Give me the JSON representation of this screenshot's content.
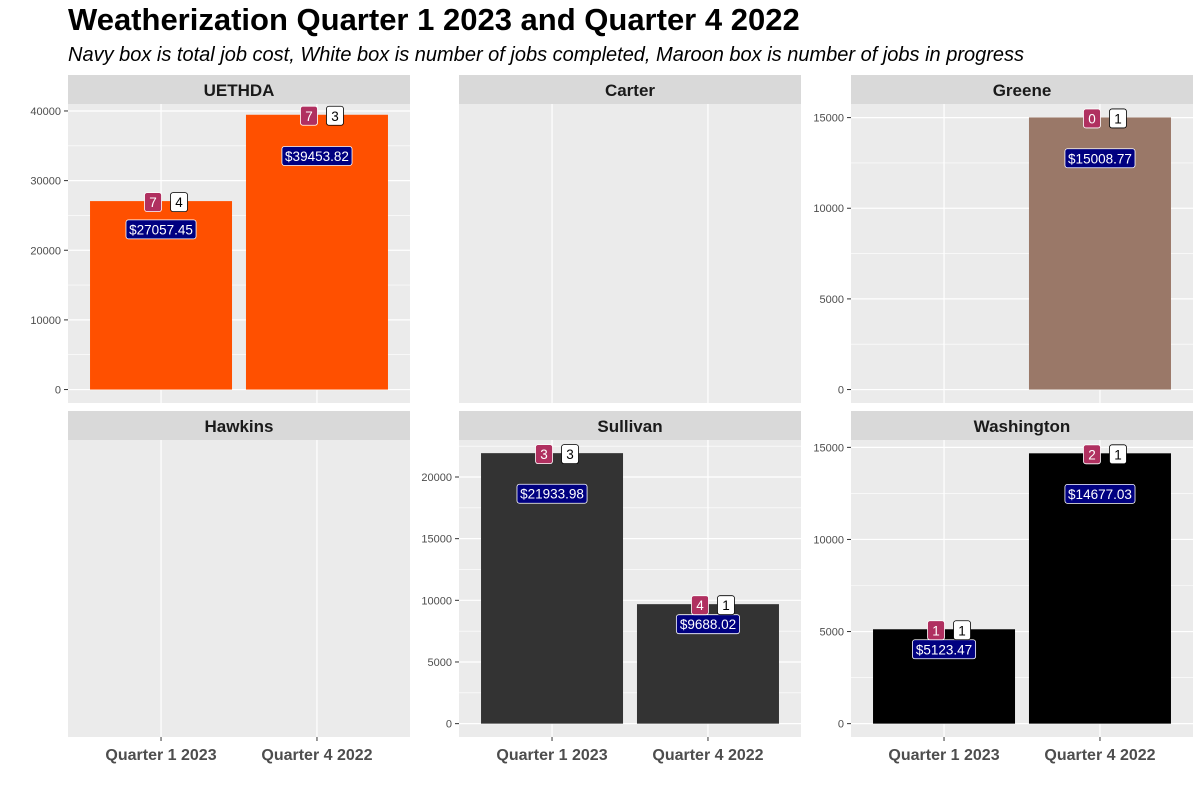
{
  "title": "Weatherization Quarter 1 2023 and Quarter 4 2022",
  "subtitle": "Navy box is total job cost, White box is number of jobs completed, Maroon box is number of jobs in progress",
  "colors": {
    "panel_bg": "#ebebeb",
    "strip_bg": "#d9d9d9",
    "grid": "#ffffff",
    "cost_box": "#000080",
    "completed_box": "#ffffff",
    "in_progress_box": "#b03060"
  },
  "chart_data": {
    "type": "bar",
    "layout": "facet grid, 2 rows x 3 columns, free y scales",
    "categories": [
      "Quarter 1 2023",
      "Quarter 4 2022"
    ],
    "series_meaning": {
      "value": "total job cost",
      "completed": "number of jobs completed",
      "in_progress": "number of jobs in progress"
    },
    "facets": [
      {
        "name": "UETHDA",
        "color": "#ff5000",
        "ylim": [
          0,
          41000
        ],
        "yticks": [
          0,
          10000,
          20000,
          30000,
          40000
        ],
        "bars": [
          {
            "category": "Quarter 1 2023",
            "value": 27057.45,
            "label": "$27057.45",
            "in_progress": "7",
            "completed": "4"
          },
          {
            "category": "Quarter 4 2022",
            "value": 39453.82,
            "label": "$39453.82",
            "in_progress": "7",
            "completed": "3"
          }
        ]
      },
      {
        "name": "Carter",
        "color": "#888888",
        "ylim": [
          0,
          1
        ],
        "yticks": [],
        "bars": []
      },
      {
        "name": "Greene",
        "color": "#9a7868",
        "ylim": [
          0,
          15750
        ],
        "yticks": [
          0,
          5000,
          10000,
          15000
        ],
        "bars": [
          {
            "category": "Quarter 4 2022",
            "value": 15008.77,
            "label": "$15008.77",
            "in_progress": "0",
            "completed": "1"
          }
        ]
      },
      {
        "name": "Hawkins",
        "color": "#888888",
        "ylim": [
          0,
          1
        ],
        "yticks": [],
        "bars": []
      },
      {
        "name": "Sullivan",
        "color": "#333333",
        "ylim": [
          0,
          23000
        ],
        "yticks": [
          0,
          5000,
          10000,
          15000,
          20000
        ],
        "bars": [
          {
            "category": "Quarter 1 2023",
            "value": 21933.98,
            "label": "$21933.98",
            "in_progress": "3",
            "completed": "3"
          },
          {
            "category": "Quarter 4 2022",
            "value": 9688.02,
            "label": "$9688.02",
            "in_progress": "4",
            "completed": "1"
          }
        ]
      },
      {
        "name": "Washington",
        "color": "#000000",
        "ylim": [
          0,
          15400
        ],
        "yticks": [
          0,
          5000,
          10000,
          15000
        ],
        "bars": [
          {
            "category": "Quarter 1 2023",
            "value": 5123.47,
            "label": "$5123.47",
            "in_progress": "1",
            "completed": "1"
          },
          {
            "category": "Quarter 4 2022",
            "value": 14677.03,
            "label": "$14677.03",
            "in_progress": "2",
            "completed": "1"
          }
        ]
      }
    ]
  }
}
